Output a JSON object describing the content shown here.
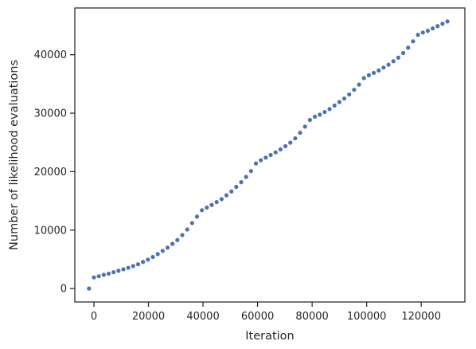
{
  "chart_data": {
    "type": "scatter",
    "title": "",
    "xlabel": "Iteration",
    "ylabel": "Number of likelihood evaluations",
    "xlim": [
      -7000,
      136000
    ],
    "ylim": [
      -2300,
      48000
    ],
    "xticks": [
      0,
      20000,
      40000,
      60000,
      80000,
      100000,
      120000
    ],
    "xtick_labels": [
      "0",
      "20000",
      "40000",
      "60000",
      "80000",
      "100000",
      "120000"
    ],
    "yticks": [
      0,
      10000,
      20000,
      30000,
      40000
    ],
    "ytick_labels": [
      "0",
      "10000",
      "20000",
      "30000",
      "40000"
    ],
    "grid": false,
    "marker_color": "#4c72b0",
    "x": [
      -1800,
      0,
      1800,
      3600,
      5400,
      7200,
      9000,
      10800,
      12600,
      14400,
      16200,
      18000,
      19800,
      21600,
      23400,
      25200,
      27000,
      28800,
      30600,
      32400,
      34200,
      36000,
      37800,
      39600,
      41400,
      43200,
      45000,
      46800,
      48600,
      50400,
      52200,
      54000,
      55800,
      57600,
      59400,
      61200,
      63000,
      64800,
      66600,
      68400,
      70200,
      72000,
      73800,
      75600,
      77400,
      79200,
      81000,
      82800,
      84600,
      86400,
      88200,
      90000,
      91800,
      93600,
      95400,
      97200,
      99000,
      100800,
      102600,
      104400,
      106200,
      108000,
      109800,
      111600,
      113400,
      115200,
      117000,
      118800,
      120600,
      122400,
      124200,
      126000,
      127800,
      129600
    ],
    "y": [
      0,
      1900,
      2100,
      2350,
      2550,
      2800,
      3050,
      3300,
      3550,
      3850,
      4150,
      4550,
      4950,
      5400,
      5900,
      6450,
      7000,
      7650,
      8300,
      9150,
      10100,
      11200,
      12300,
      13400,
      13850,
      14300,
      14800,
      15300,
      15950,
      16600,
      17400,
      18200,
      19100,
      20100,
      21400,
      21950,
      22400,
      22850,
      23300,
      23800,
      24350,
      24950,
      25700,
      26650,
      27700,
      28850,
      29400,
      29750,
      30200,
      30700,
      31300,
      31900,
      32500,
      33200,
      34000,
      34900,
      36000,
      36500,
      36900,
      37300,
      37800,
      38300,
      38900,
      39500,
      40300,
      41200,
      42300,
      43400,
      43800,
      44100,
      44500,
      44900,
      45300,
      45700
    ]
  }
}
